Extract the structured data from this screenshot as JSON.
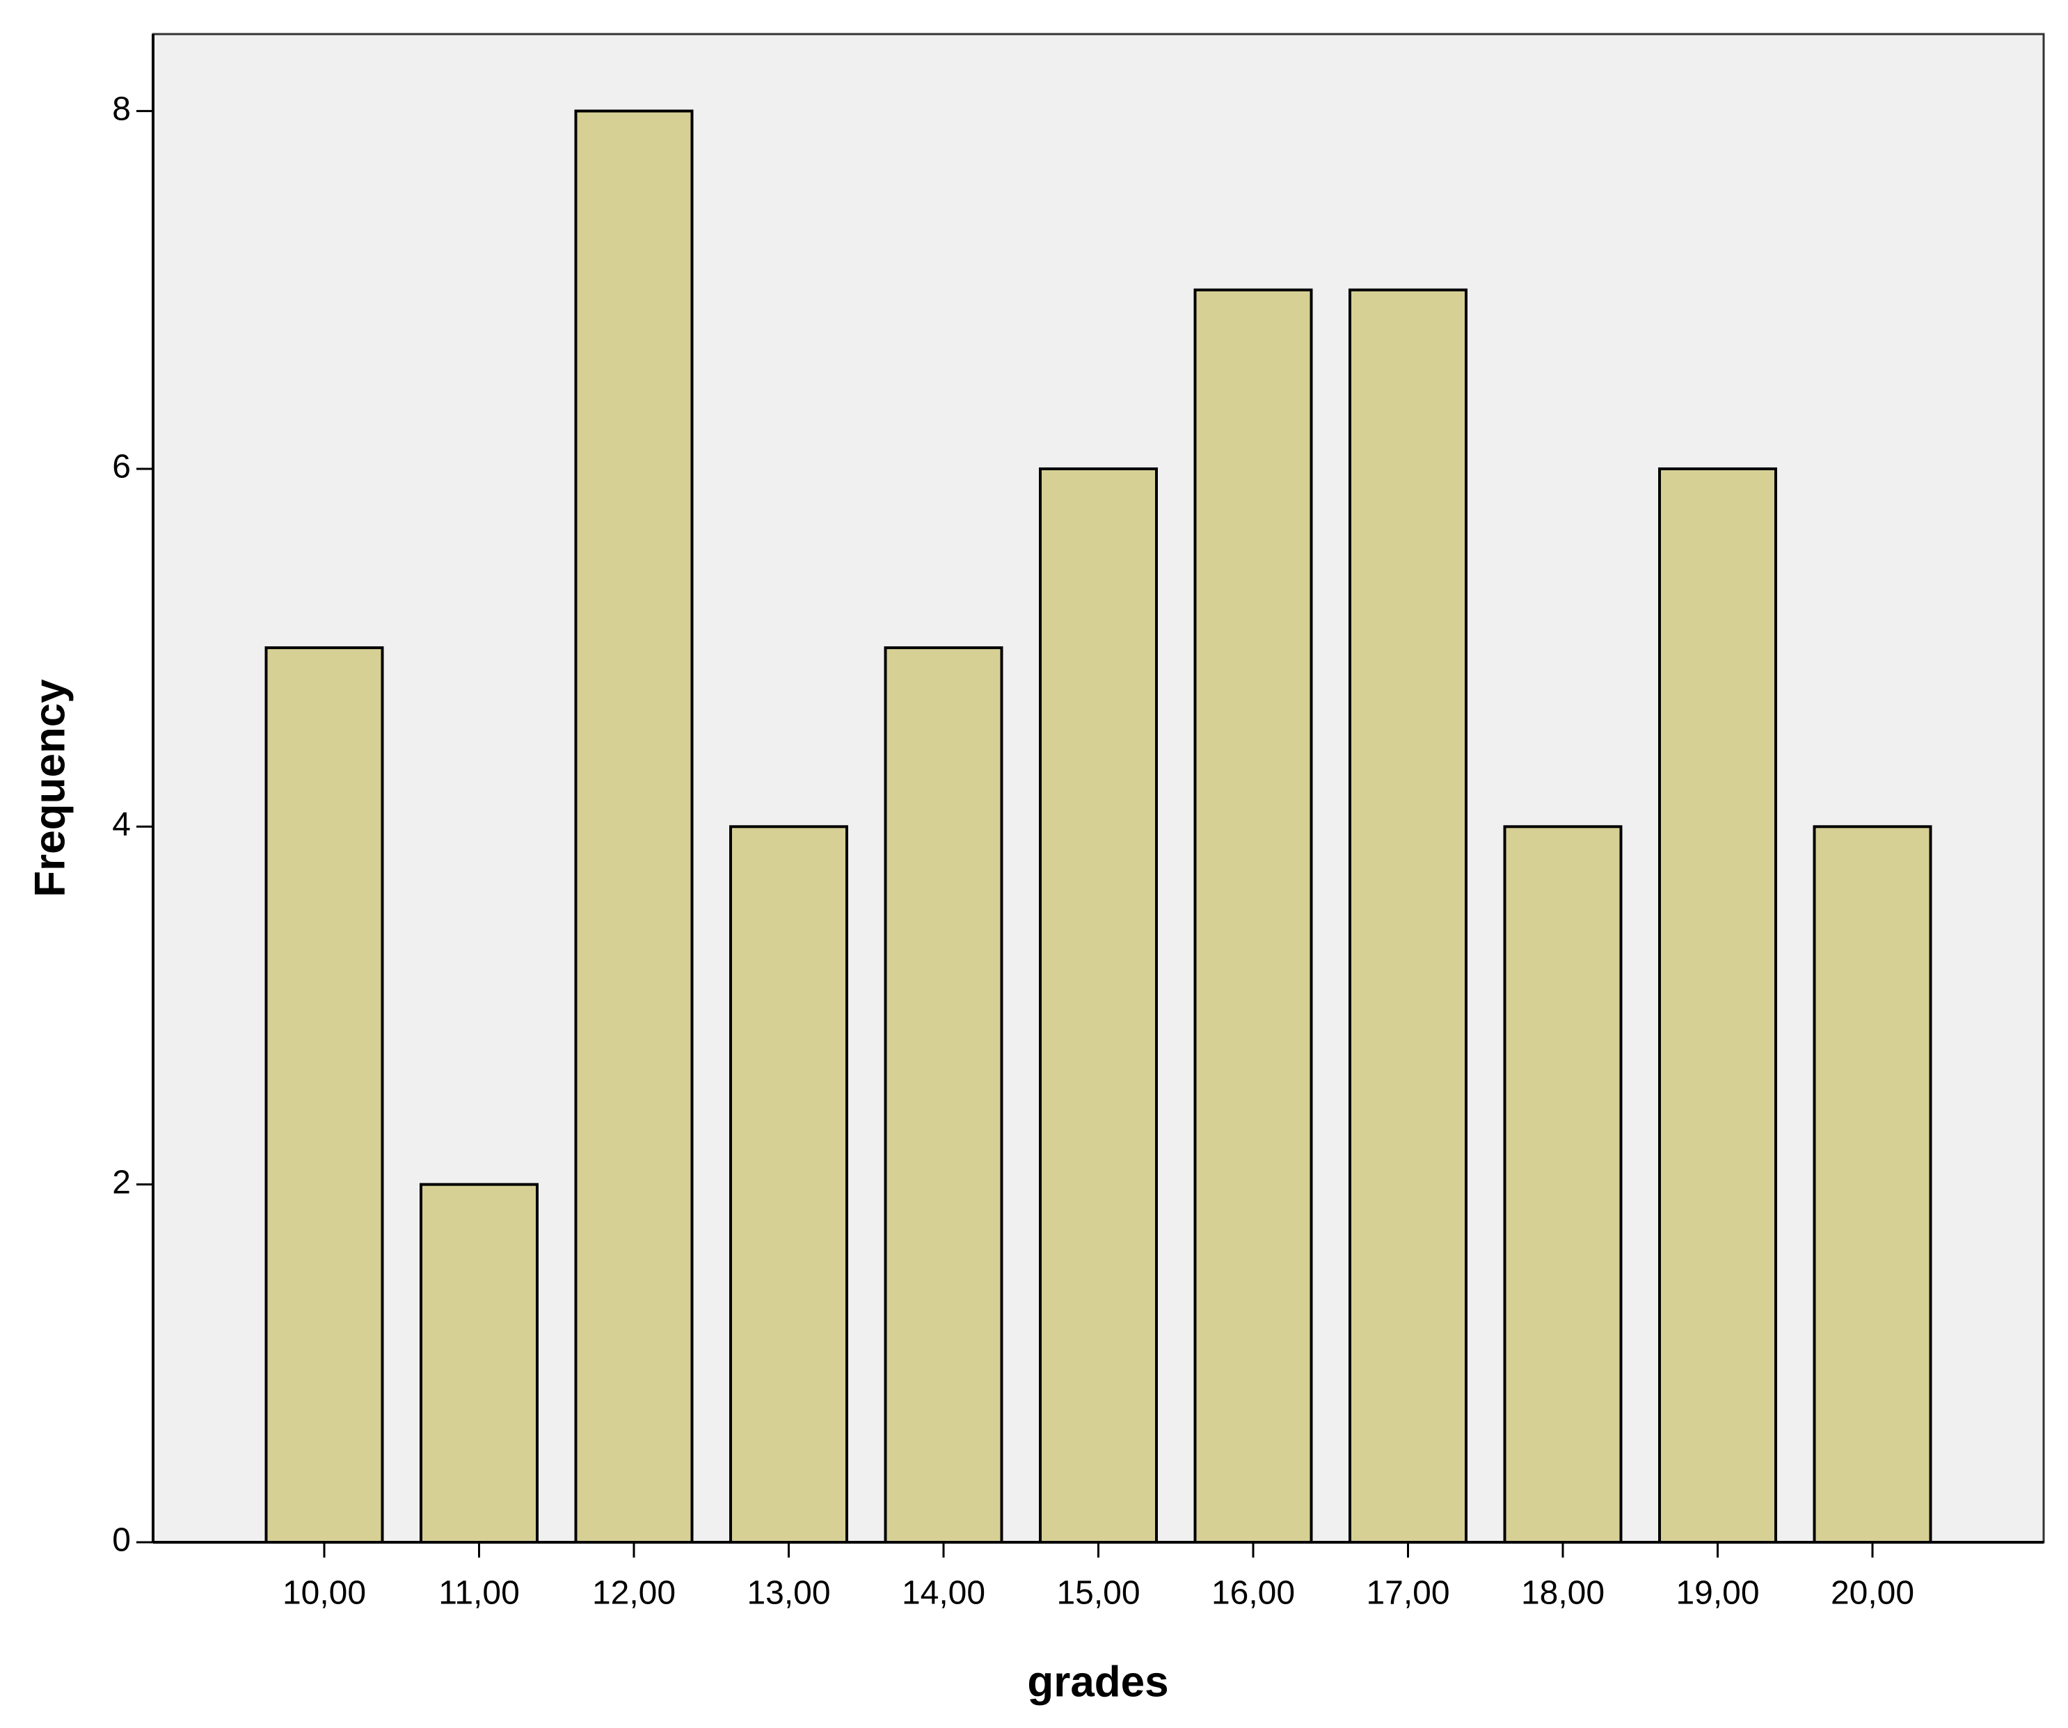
{
  "chart_data": {
    "type": "bar",
    "x_label": "grades",
    "y_label": "Frequency",
    "categories": [
      "10,00",
      "11,00",
      "12,00",
      "13,00",
      "14,00",
      "15,00",
      "16,00",
      "17,00",
      "18,00",
      "19,00",
      "20,00"
    ],
    "values": [
      5,
      2,
      8,
      4,
      5,
      6,
      7,
      7,
      4,
      6,
      4
    ],
    "color": "#d7d095",
    "ylim": [
      0,
      8.43
    ],
    "yticks": [
      0,
      2,
      4,
      6,
      8
    ],
    "grid": false
  }
}
